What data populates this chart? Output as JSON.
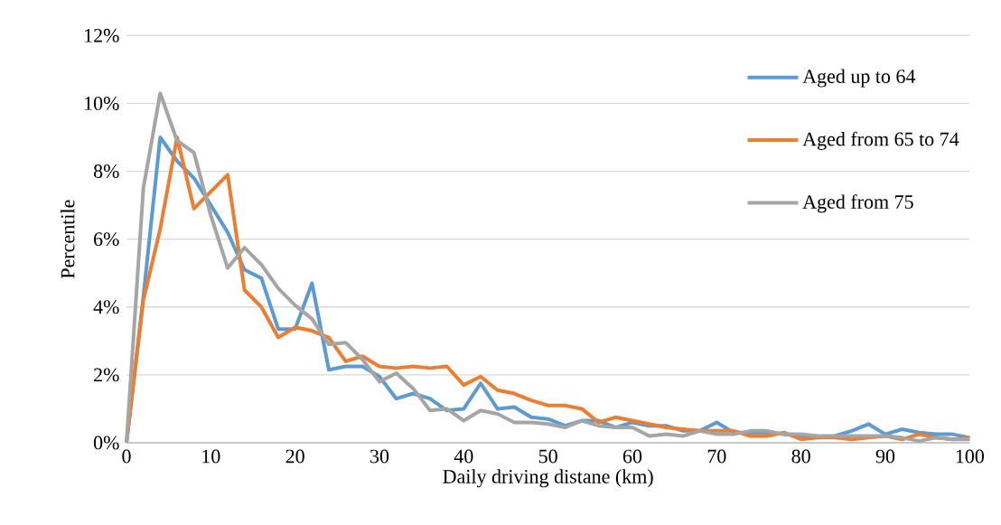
{
  "chart_data": {
    "type": "line",
    "xlabel": "Daily driving distane (km)",
    "ylabel": "Percentile",
    "x": [
      0,
      2,
      4,
      6,
      8,
      10,
      12,
      14,
      16,
      18,
      20,
      22,
      24,
      26,
      28,
      30,
      32,
      34,
      36,
      38,
      40,
      42,
      44,
      46,
      48,
      50,
      52,
      54,
      56,
      58,
      60,
      62,
      64,
      66,
      68,
      70,
      72,
      74,
      76,
      78,
      80,
      82,
      84,
      86,
      88,
      90,
      92,
      94,
      96,
      98,
      100
    ],
    "series": [
      {
        "name": "Aged up to 64",
        "color": "#5b9bd5",
        "values": [
          0,
          4.3,
          9.0,
          8.3,
          7.8,
          7.0,
          6.2,
          5.1,
          4.85,
          3.35,
          3.35,
          4.7,
          2.15,
          2.25,
          2.25,
          1.95,
          1.3,
          1.45,
          1.3,
          0.95,
          1.0,
          1.75,
          1.0,
          1.05,
          0.75,
          0.7,
          0.5,
          0.65,
          0.65,
          0.45,
          0.6,
          0.5,
          0.5,
          0.35,
          0.35,
          0.6,
          0.3,
          0.3,
          0.3,
          0.25,
          0.2,
          0.15,
          0.2,
          0.35,
          0.55,
          0.25,
          0.4,
          0.3,
          0.25,
          0.25,
          0.15
        ]
      },
      {
        "name": "Aged from 65 to 74",
        "color": "#ed7d31",
        "values": [
          0,
          4.2,
          6.3,
          9.0,
          6.9,
          7.4,
          7.9,
          4.5,
          4.0,
          3.1,
          3.4,
          3.3,
          3.1,
          2.4,
          2.55,
          2.25,
          2.2,
          2.25,
          2.2,
          2.25,
          1.7,
          1.95,
          1.55,
          1.45,
          1.25,
          1.1,
          1.1,
          1.0,
          0.6,
          0.75,
          0.65,
          0.55,
          0.45,
          0.4,
          0.35,
          0.35,
          0.35,
          0.2,
          0.2,
          0.3,
          0.1,
          0.15,
          0.15,
          0.1,
          0.15,
          0.2,
          0.1,
          0.25,
          0.15,
          0.1,
          0.15
        ]
      },
      {
        "name": "Aged from 75",
        "color": "#a5a5a5",
        "values": [
          0,
          7.5,
          10.3,
          8.9,
          8.55,
          6.7,
          5.15,
          5.75,
          5.25,
          4.55,
          4.05,
          3.65,
          2.9,
          2.95,
          2.45,
          1.8,
          2.05,
          1.6,
          0.95,
          1.0,
          0.65,
          0.95,
          0.85,
          0.6,
          0.6,
          0.55,
          0.45,
          0.65,
          0.5,
          0.45,
          0.45,
          0.2,
          0.25,
          0.2,
          0.35,
          0.25,
          0.25,
          0.35,
          0.35,
          0.25,
          0.25,
          0.2,
          0.2,
          0.2,
          0.2,
          0.2,
          0.15,
          0.05,
          0.15,
          0.1,
          0.1
        ]
      }
    ],
    "xlim": [
      0,
      100
    ],
    "xticks": [
      0,
      10,
      20,
      30,
      40,
      50,
      60,
      70,
      80,
      90,
      100
    ],
    "ylim": [
      0,
      12
    ],
    "yticks": [
      {
        "value": 0,
        "label": "0%"
      },
      {
        "value": 2,
        "label": "2%"
      },
      {
        "value": 4,
        "label": "4%"
      },
      {
        "value": 6,
        "label": "6%"
      },
      {
        "value": 8,
        "label": "8%"
      },
      {
        "value": 10,
        "label": "10%"
      },
      {
        "value": 12,
        "label": "12%"
      }
    ],
    "grid": "y",
    "legend": "top right",
    "marker": "none",
    "line_style": "solid"
  }
}
